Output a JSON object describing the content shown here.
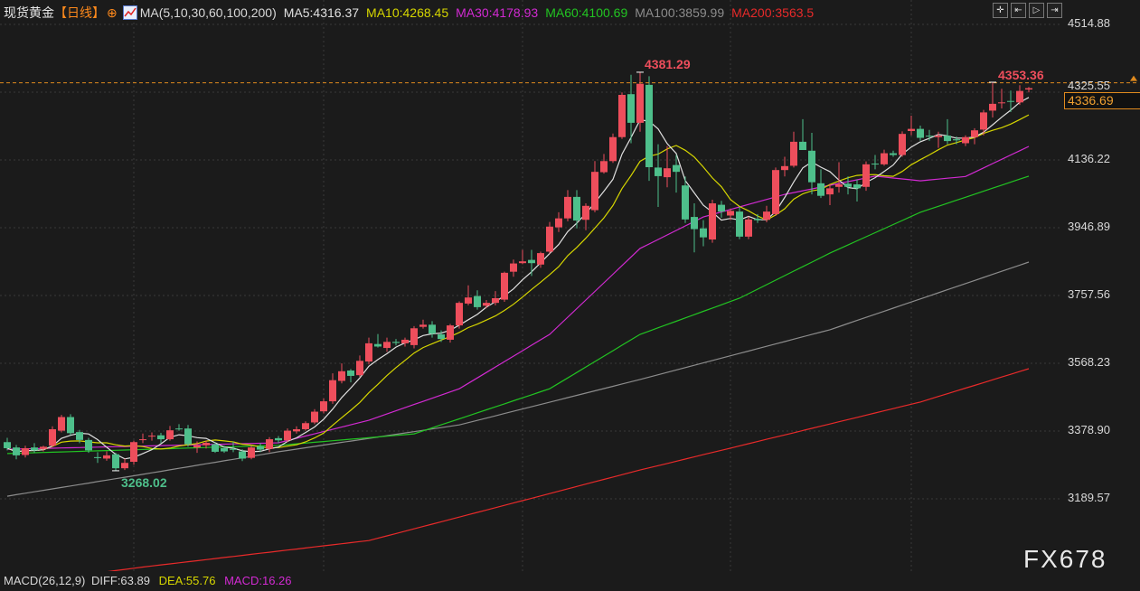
{
  "header": {
    "title": "现货黄金",
    "period": "【日线】",
    "ma_label": "MA(5,10,30,60,100,200)",
    "legend": [
      {
        "text": "MA5:4316.37",
        "color": "#e0e0e0"
      },
      {
        "text": "MA10:4268.45",
        "color": "#d6d600"
      },
      {
        "text": "MA30:4178.93",
        "color": "#d22ad2"
      },
      {
        "text": "MA60:4100.69",
        "color": "#22c422"
      },
      {
        "text": "MA100:3859.99",
        "color": "#8c8c8c"
      },
      {
        "text": "MA200:3563.5",
        "color": "#e82a2a"
      }
    ]
  },
  "toolbar": {
    "icons": [
      "crosshair-icon",
      "pan-left-icon",
      "play-step-icon",
      "go-end-icon"
    ]
  },
  "price_axis": {
    "ticks": [
      "4514.88",
      "4325.55",
      "4136.22",
      "3946.89",
      "3757.56",
      "3568.23",
      "3378.90",
      "3189.57"
    ],
    "last_price": "4336.69"
  },
  "annotations": {
    "high": "4381.29",
    "recent_high": "4353.36",
    "low": "3268.02"
  },
  "macd": {
    "label": "MACD(26,12,9)",
    "diff": "DIFF:63.89",
    "dea": "DEA:55.76",
    "macd": "MACD:16.26"
  },
  "watermark": "FX678",
  "colors": {
    "up": "#ee4e5c",
    "down": "#4ebf8b",
    "background": "#1b1b1b",
    "last_price_line": "#e08a1e"
  },
  "chart_data": {
    "type": "candlestick",
    "title": "现货黄金",
    "ylim": [
      2987,
      4583
    ],
    "grid": true,
    "yticks": [
      4514.88,
      4325.55,
      4136.22,
      3946.89,
      3757.56,
      3568.23,
      3378.9,
      3189.57
    ],
    "ohlc": [
      [
        3348,
        3360,
        3325,
        3331
      ],
      [
        3333,
        3340,
        3300,
        3311
      ],
      [
        3312,
        3338,
        3305,
        3331
      ],
      [
        3333,
        3345,
        3318,
        3325
      ],
      [
        3329,
        3338,
        3322,
        3335
      ],
      [
        3338,
        3392,
        3335,
        3384
      ],
      [
        3380,
        3424,
        3375,
        3418
      ],
      [
        3418,
        3426,
        3368,
        3373
      ],
      [
        3376,
        3382,
        3345,
        3354
      ],
      [
        3354,
        3360,
        3318,
        3325
      ],
      [
        3306,
        3320,
        3290,
        3305
      ],
      [
        3302,
        3322,
        3296,
        3311
      ],
      [
        3314,
        3318,
        3268.02,
        3275
      ],
      [
        3275,
        3302,
        3270,
        3290
      ],
      [
        3293,
        3352,
        3285,
        3348
      ],
      [
        3355,
        3372,
        3345,
        3356
      ],
      [
        3365,
        3375,
        3352,
        3366
      ],
      [
        3367,
        3374,
        3345,
        3356
      ],
      [
        3356,
        3393,
        3352,
        3381
      ],
      [
        3386,
        3398,
        3380,
        3384
      ],
      [
        3386,
        3396,
        3335,
        3342
      ],
      [
        3333,
        3350,
        3318,
        3339
      ],
      [
        3339,
        3352,
        3330,
        3346
      ],
      [
        3342,
        3348,
        3318,
        3321
      ],
      [
        3331,
        3338,
        3318,
        3322
      ],
      [
        3329,
        3350,
        3320,
        3328
      ],
      [
        3322,
        3328,
        3295,
        3302
      ],
      [
        3304,
        3340,
        3300,
        3333
      ],
      [
        3336,
        3345,
        3320,
        3327
      ],
      [
        3329,
        3362,
        3320,
        3356
      ],
      [
        3359,
        3365,
        3345,
        3353
      ],
      [
        3353,
        3386,
        3348,
        3380
      ],
      [
        3378,
        3392,
        3372,
        3384
      ],
      [
        3384,
        3406,
        3380,
        3401
      ],
      [
        3403,
        3440,
        3398,
        3433
      ],
      [
        3434,
        3470,
        3428,
        3462
      ],
      [
        3462,
        3540,
        3455,
        3521
      ],
      [
        3519,
        3568,
        3512,
        3546
      ],
      [
        3548,
        3552,
        3515,
        3533
      ],
      [
        3535,
        3590,
        3530,
        3575
      ],
      [
        3573,
        3640,
        3565,
        3624
      ],
      [
        3622,
        3650,
        3612,
        3615
      ],
      [
        3611,
        3640,
        3600,
        3628
      ],
      [
        3628,
        3636,
        3618,
        3625
      ],
      [
        3624,
        3640,
        3615,
        3634
      ],
      [
        3619,
        3672,
        3610,
        3666
      ],
      [
        3670,
        3690,
        3665,
        3676
      ],
      [
        3676,
        3686,
        3640,
        3651
      ],
      [
        3649,
        3660,
        3628,
        3636
      ],
      [
        3634,
        3678,
        3626,
        3674
      ],
      [
        3674,
        3741,
        3665,
        3737
      ],
      [
        3735,
        3786,
        3730,
        3752
      ],
      [
        3756,
        3772,
        3718,
        3725
      ],
      [
        3729,
        3745,
        3722,
        3737
      ],
      [
        3737,
        3770,
        3730,
        3750
      ],
      [
        3746,
        3824,
        3740,
        3821
      ],
      [
        3824,
        3858,
        3810,
        3847
      ],
      [
        3848,
        3885,
        3845,
        3853
      ],
      [
        3857,
        3885,
        3812,
        3848
      ],
      [
        3844,
        3880,
        3835,
        3876
      ],
      [
        3880,
        3963,
        3875,
        3950
      ],
      [
        3948,
        3990,
        3935,
        3973
      ],
      [
        3973,
        4052,
        3965,
        4033
      ],
      [
        4033,
        4052,
        3945,
        3967
      ],
      [
        3969,
        4015,
        3940,
        4008
      ],
      [
        3996,
        4133,
        3990,
        4103
      ],
      [
        4102,
        4153,
        4098,
        4133
      ],
      [
        4133,
        4210,
        4128,
        4200
      ],
      [
        4200,
        4325,
        4195,
        4318
      ],
      [
        4320,
        4374,
        4183,
        4240
      ],
      [
        4240,
        4381.29,
        4215,
        4349
      ],
      [
        4346,
        4370,
        4078,
        4116
      ],
      [
        4115,
        4180,
        4005,
        4091
      ],
      [
        4088,
        4175,
        4060,
        4113
      ],
      [
        4122,
        4150,
        4045,
        4103
      ],
      [
        4065,
        4090,
        3960,
        3970
      ],
      [
        3977,
        4015,
        3878,
        3943
      ],
      [
        3945,
        3968,
        3895,
        3920
      ],
      [
        3914,
        4025,
        3905,
        4015
      ],
      [
        4011,
        4022,
        3975,
        3992
      ],
      [
        3981,
        4000,
        3968,
        3994
      ],
      [
        3992,
        4005,
        3915,
        3922
      ],
      [
        3922,
        3978,
        3915,
        3970
      ],
      [
        3972,
        3985,
        3960,
        3968
      ],
      [
        3969,
        4008,
        3962,
        3992
      ],
      [
        3985,
        4115,
        3980,
        4108
      ],
      [
        4108,
        4145,
        4090,
        4119
      ],
      [
        4120,
        4215,
        4115,
        4187
      ],
      [
        4187,
        4250,
        4170,
        4164
      ],
      [
        4162,
        4212,
        4040,
        4074
      ],
      [
        4071,
        4110,
        4030,
        4036
      ],
      [
        4040,
        4070,
        4010,
        4057
      ],
      [
        4061,
        4130,
        4045,
        4068
      ],
      [
        4070,
        4090,
        4040,
        4061
      ],
      [
        4068,
        4082,
        4020,
        4057
      ],
      [
        4061,
        4132,
        4050,
        4124
      ],
      [
        4126,
        4150,
        4110,
        4124
      ],
      [
        4124,
        4165,
        4120,
        4155
      ],
      [
        4155,
        4162,
        4145,
        4150
      ],
      [
        4150,
        4216,
        4145,
        4209
      ],
      [
        4217,
        4260,
        4205,
        4223
      ],
      [
        4223,
        4232,
        4190,
        4198
      ],
      [
        4204,
        4220,
        4190,
        4203
      ],
      [
        4200,
        4215,
        4170,
        4204
      ],
      [
        4204,
        4250,
        4180,
        4189
      ],
      [
        4194,
        4202,
        4180,
        4191
      ],
      [
        4183,
        4205,
        4175,
        4200
      ],
      [
        4200,
        4225,
        4180,
        4219
      ],
      [
        4221,
        4276,
        4205,
        4269
      ],
      [
        4274,
        4353.36,
        4255,
        4293
      ],
      [
        4295,
        4335,
        4280,
        4297
      ],
      [
        4301,
        4330,
        4270,
        4299
      ],
      [
        4297,
        4345,
        4290,
        4329
      ],
      [
        4333,
        4340,
        4325,
        4336.69
      ]
    ],
    "moving_averages": [
      {
        "name": "MA5",
        "period": 5,
        "color": "#e0e0e0"
      },
      {
        "name": "MA10",
        "period": 10,
        "color": "#d6d600"
      },
      {
        "name": "MA30",
        "color": "#d22ad2",
        "points": [
          [
            0,
            3328
          ],
          [
            30,
            3346
          ],
          [
            40,
            3409
          ],
          [
            50,
            3497
          ],
          [
            60,
            3649
          ],
          [
            70,
            3889
          ],
          [
            77,
            3977
          ],
          [
            86,
            4040
          ],
          [
            96,
            4091
          ],
          [
            101,
            4078
          ],
          [
            106,
            4090
          ],
          [
            113,
            4174
          ]
        ]
      },
      {
        "name": "MA60",
        "color": "#22c422",
        "points": [
          [
            0,
            3316
          ],
          [
            30,
            3339
          ],
          [
            45,
            3371
          ],
          [
            60,
            3497
          ],
          [
            70,
            3649
          ],
          [
            81,
            3750
          ],
          [
            91,
            3876
          ],
          [
            101,
            3990
          ],
          [
            113,
            4091
          ]
        ]
      },
      {
        "name": "MA100",
        "color": "#8c8c8c",
        "points": [
          [
            0,
            3197
          ],
          [
            15,
            3258
          ],
          [
            30,
            3321
          ],
          [
            50,
            3396
          ],
          [
            70,
            3523
          ],
          [
            91,
            3662
          ],
          [
            113,
            3851
          ]
        ]
      },
      {
        "name": "MA200",
        "color": "#e82a2a",
        "points": [
          [
            0,
            2950
          ],
          [
            15,
            2999
          ],
          [
            40,
            3073
          ],
          [
            70,
            3270
          ],
          [
            101,
            3460
          ],
          [
            113,
            3553
          ]
        ]
      }
    ]
  }
}
